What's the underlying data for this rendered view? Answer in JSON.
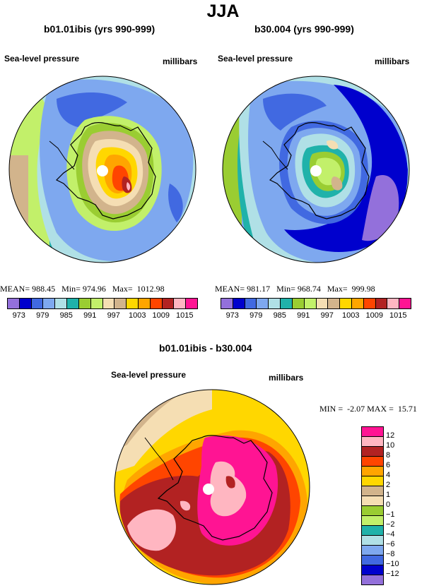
{
  "title": "JJA",
  "panels": [
    {
      "id": "left",
      "case_title": "b01.01ibis (yrs 990-999)",
      "variable": "Sea-level pressure",
      "units": "millibars",
      "stats": {
        "mean_label": "MEAN=",
        "mean": "988.45",
        "min_label": "Min=",
        "min": "974.96",
        "max_label": "Max=",
        "max": "1012.98"
      }
    },
    {
      "id": "right",
      "case_title": "b30.004 (yrs 990-999)",
      "variable": "Sea-level pressure",
      "units": "millibars",
      "stats": {
        "mean_label": "MEAN=",
        "mean": "981.17",
        "min_label": "Min=",
        "min": "968.74",
        "max_label": "Max=",
        "max": "999.98"
      }
    },
    {
      "id": "diff",
      "case_title": "b01.01ibis - b30.004",
      "variable": "Sea-level pressure",
      "units": "millibars",
      "stats": {
        "min_label": "MIN =",
        "min": "-2.07",
        "max_label": "MAX =",
        "max": "15.71"
      }
    }
  ],
  "colorbar_top": {
    "colors": [
      "#9370db",
      "#0000cd",
      "#4169e1",
      "#7ea8ef",
      "#b0e0e6",
      "#20b2aa",
      "#9acd32",
      "#c2f06a",
      "#f5deb3",
      "#d2b48c",
      "#ffd700",
      "#ffa500",
      "#ff4500",
      "#b22222",
      "#ffb6c1",
      "#ff1493"
    ],
    "tick_labels": [
      "973",
      "979",
      "985",
      "991",
      "997",
      "1003",
      "1009",
      "1015"
    ]
  },
  "colorbar_diff": {
    "colors": [
      "#ff1493",
      "#ffb6c1",
      "#b22222",
      "#ff4500",
      "#ffa500",
      "#ffd700",
      "#d2b48c",
      "#f5deb3",
      "#9acd32",
      "#c2f06a",
      "#20b2aa",
      "#b0e0e6",
      "#7ea8ef",
      "#4169e1",
      "#0000cd",
      "#9370db"
    ],
    "tick_labels": [
      "12",
      "10",
      "8",
      "6",
      "4",
      "2",
      "1",
      "0",
      "−1",
      "−2",
      "−4",
      "−6",
      "−8",
      "−10",
      "−12"
    ]
  }
}
